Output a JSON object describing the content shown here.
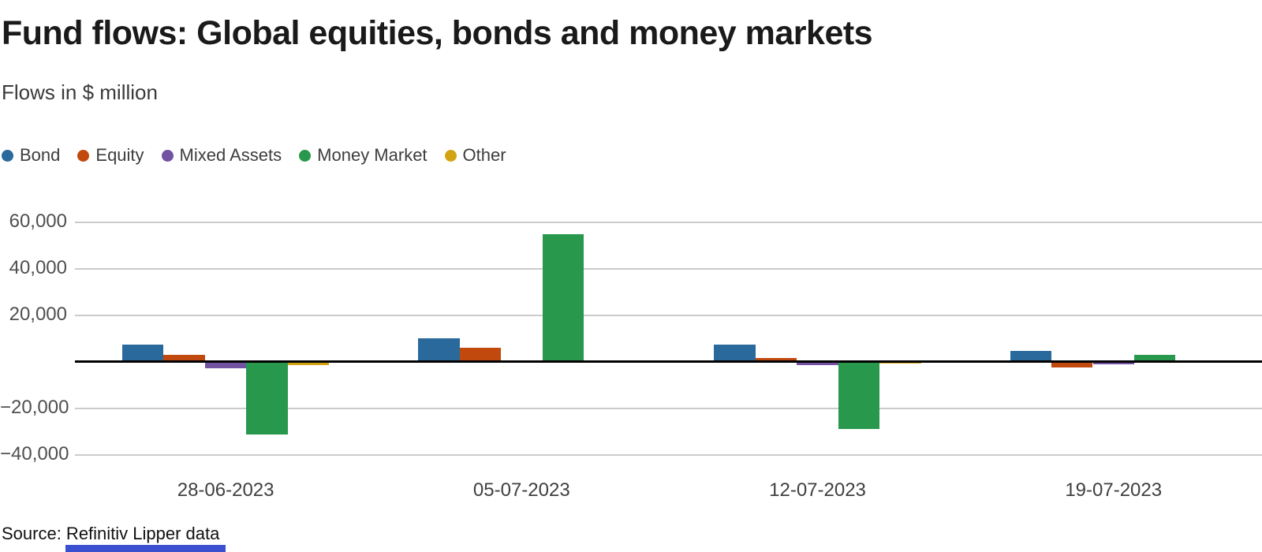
{
  "header": {
    "title": "Fund flows: Global equities, bonds and money markets",
    "subtitle": "Flows in $ million"
  },
  "legend": [
    {
      "label": "Bond",
      "color": "#2a699c"
    },
    {
      "label": "Equity",
      "color": "#c2490d"
    },
    {
      "label": "Mixed Assets",
      "color": "#7253a2"
    },
    {
      "label": "Money Market",
      "color": "#27984c"
    },
    {
      "label": "Other",
      "color": "#d2a414"
    }
  ],
  "chart_data": {
    "type": "bar",
    "title": "Fund flows: Global equities, bonds and money markets",
    "subtitle": "Flows in $ million",
    "unit": "$ million",
    "categories": [
      "28-06-2023",
      "05-07-2023",
      "12-07-2023",
      "19-07-2023"
    ],
    "series": [
      {
        "name": "Bond",
        "color": "#2a699c",
        "values": [
          7200,
          10000,
          7300,
          4700
        ]
      },
      {
        "name": "Equity",
        "color": "#c2490d",
        "values": [
          2900,
          5900,
          1600,
          -2700
        ]
      },
      {
        "name": "Mixed Assets",
        "color": "#7253a2",
        "values": [
          -2800,
          0,
          -1500,
          -1100
        ]
      },
      {
        "name": "Money Market",
        "color": "#27984c",
        "values": [
          -31400,
          54600,
          -28900,
          2800
        ]
      },
      {
        "name": "Other",
        "color": "#d2a414",
        "values": [
          -1500,
          0,
          -900,
          0
        ]
      }
    ],
    "yticks": [
      {
        "value": 60000,
        "label": "60,000"
      },
      {
        "value": 40000,
        "label": "40,000"
      },
      {
        "value": 20000,
        "label": "20,000"
      },
      {
        "value": -20000,
        "label": "−20,000"
      },
      {
        "value": -40000,
        "label": "−40,000"
      }
    ],
    "ylim": [
      -44000,
      69000
    ],
    "grid": "horizontal",
    "legend_position": "top",
    "zero_line": true
  },
  "footer": {
    "source": "Source: Refinitiv Lipper data"
  }
}
